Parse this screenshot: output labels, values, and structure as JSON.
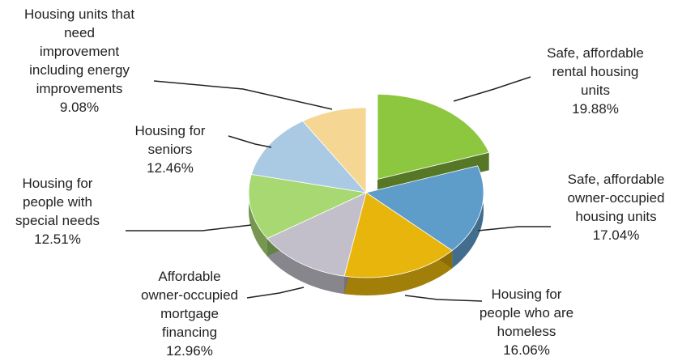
{
  "chart_data": {
    "type": "pie3d",
    "categories": [
      "Safe, affordable rental housing units",
      "Safe, affordable owner-occupied housing units",
      "Housing for people who are homeless",
      "Affordable owner-occupied mortgage financing",
      "Housing for people with special needs",
      "Housing for seniors",
      "Housing units that need improvement including energy improvements"
    ],
    "values": [
      19.88,
      17.04,
      16.06,
      12.96,
      12.51,
      12.46,
      9.08
    ],
    "value_labels": [
      "19.88%",
      "17.04%",
      "16.06%",
      "12.96%",
      "12.51%",
      "12.46%",
      "9.08%"
    ],
    "colors": [
      "#8dc63f",
      "#5e9cc9",
      "#e8b50c",
      "#c2bfca",
      "#a7d872",
      "#aac9e2",
      "#f6d693"
    ]
  }
}
